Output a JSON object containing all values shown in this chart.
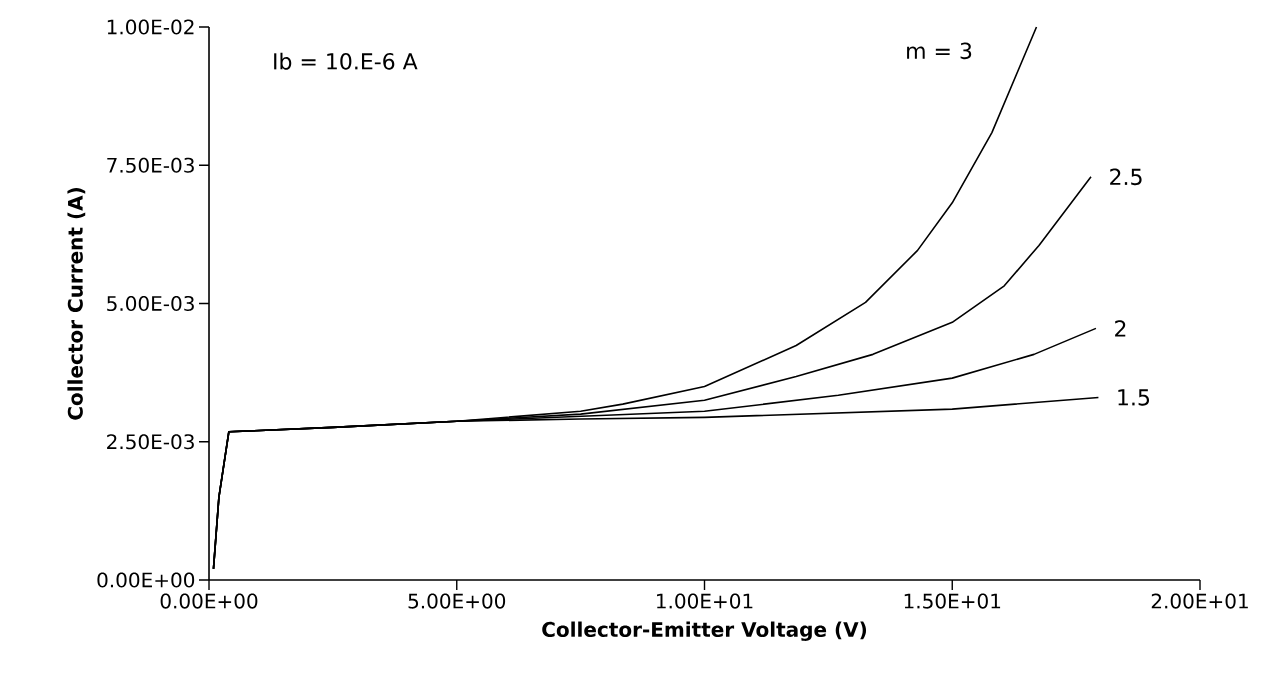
{
  "chart_data": {
    "type": "line",
    "xlabel": "Collector-Emitter Voltage (V)",
    "ylabel": "Collector Current (A)",
    "annotations": [
      "Ib = 10.E-6 A"
    ],
    "xlim": [
      0,
      20
    ],
    "ylim": [
      0,
      0.01
    ],
    "xticks": [
      {
        "value": 0,
        "label": "0.00E+00"
      },
      {
        "value": 5,
        "label": "5.00E+00"
      },
      {
        "value": 10,
        "label": "1.00E+01"
      },
      {
        "value": 15,
        "label": "1.50E+01"
      },
      {
        "value": 20,
        "label": "2.00E+01"
      }
    ],
    "yticks": [
      {
        "value": 0,
        "label": "0.00E+00"
      },
      {
        "value": 0.0025,
        "label": "2.50E-03"
      },
      {
        "value": 0.005,
        "label": "5.00E-03"
      },
      {
        "value": 0.0075,
        "label": "7.50E-03"
      },
      {
        "value": 0.01,
        "label": "1.00E-02"
      }
    ],
    "grid": false,
    "series": [
      {
        "name": "m = 3",
        "color": "#000000",
        "x": [
          0.09,
          0.2,
          0.4,
          2.5,
          5,
          7.5,
          8.35,
          10,
          11.85,
          13.25,
          14.3,
          15,
          15.8,
          16.7
        ],
        "values": [
          0.0002,
          0.0015,
          0.00268,
          0.00276,
          0.00287,
          0.00305,
          0.00318,
          0.0035,
          0.00424,
          0.00502,
          0.00596,
          0.00682,
          0.00809,
          0.01
        ]
      },
      {
        "name": "2.5",
        "color": "#000000",
        "x": [
          0.09,
          0.2,
          0.4,
          2.5,
          5,
          7.5,
          10,
          11.85,
          13.4,
          15,
          16.05,
          16.75,
          17.8
        ],
        "values": [
          0.0002,
          0.0015,
          0.00268,
          0.00276,
          0.00287,
          0.003,
          0.00325,
          0.00368,
          0.00408,
          0.00466,
          0.00532,
          0.00605,
          0.00729
        ]
      },
      {
        "name": "2",
        "color": "#000000",
        "x": [
          0.09,
          0.2,
          0.4,
          2.5,
          5,
          7.5,
          10,
          12.7,
          15,
          16.65,
          17.9
        ],
        "values": [
          0.0002,
          0.0015,
          0.00268,
          0.00276,
          0.00287,
          0.00296,
          0.00305,
          0.00334,
          0.00365,
          0.00408,
          0.00455
        ]
      },
      {
        "name": "1.5",
        "color": "#000000",
        "x": [
          0.09,
          0.2,
          0.4,
          2.5,
          5,
          7.5,
          10,
          15,
          17.95
        ],
        "values": [
          0.0002,
          0.0015,
          0.00268,
          0.00276,
          0.00287,
          0.00291,
          0.00294,
          0.00309,
          0.0033
        ]
      }
    ]
  }
}
